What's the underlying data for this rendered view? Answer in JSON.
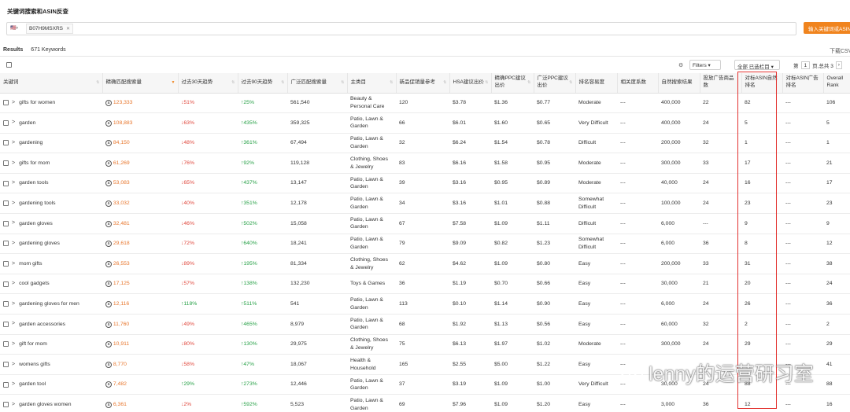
{
  "page": {
    "title": "关键词搜索和ASIN反查",
    "search_flag": "🇺🇸",
    "search_asin": "B07H9MSXRS",
    "search_remove": "✕",
    "search_button": "输入关键词或ASIN",
    "results_label": "Results",
    "results_count": "671 Keywords",
    "download": "下载CSV",
    "filters_label": "Filters ▾",
    "columns_label": "全部 已选栏目 ▾",
    "pager_prefix": "第",
    "pager_page": "1",
    "pager_suffix": "页,总共 3",
    "pager_next": "›",
    "watermark": "lenny的运营研习室"
  },
  "headers": [
    "关键词",
    "精确匹配搜索量",
    "过去30天趋势",
    "过去90天趋势",
    "广泛匹配搜索量",
    "主类目",
    "新品促销量参考",
    "HSA建议出价",
    "精确PPC建议出价",
    "广泛PPC建议出价",
    "排名容易度",
    "相关度系数",
    "自然搜索结果",
    "投放广告商品数",
    "对标ASIN自然排名",
    "对标ASIN广告排名",
    "Overall Rank"
  ],
  "rows": [
    {
      "kw": "gifts for women",
      "vol": "123,333",
      "t30": "↓51%",
      "t30d": "down",
      "t90": "↑25%",
      "t90d": "up",
      "broad": "561,540",
      "cat": "Beauty & Personal Care",
      "promo": "120",
      "hsa": "$3.78",
      "exact": "$1.36",
      "wide": "$0.77",
      "ease": "Moderate",
      "rel": "---",
      "org": "400,000",
      "ads": "22",
      "arank": "82",
      "adrank": "---",
      "overall": "106"
    },
    {
      "kw": "garden",
      "vol": "108,883",
      "t30": "↓63%",
      "t30d": "down",
      "t90": "↑435%",
      "t90d": "up",
      "broad": "359,325",
      "cat": "Patio, Lawn & Garden",
      "promo": "66",
      "hsa": "$6.01",
      "exact": "$1.60",
      "wide": "$0.65",
      "ease": "Very Difficult",
      "rel": "---",
      "org": "400,000",
      "ads": "24",
      "arank": "5",
      "adrank": "---",
      "overall": "5"
    },
    {
      "kw": "gardening",
      "vol": "84,150",
      "t30": "↓48%",
      "t30d": "down",
      "t90": "↑361%",
      "t90d": "up",
      "broad": "67,494",
      "cat": "Patio, Lawn & Garden",
      "promo": "32",
      "hsa": "$6.24",
      "exact": "$1.54",
      "wide": "$0.78",
      "ease": "Difficult",
      "rel": "---",
      "org": "200,000",
      "ads": "32",
      "arank": "1",
      "adrank": "---",
      "overall": "1"
    },
    {
      "kw": "gifts for mom",
      "vol": "61,269",
      "t30": "↓76%",
      "t30d": "down",
      "t90": "↑92%",
      "t90d": "up",
      "broad": "119,128",
      "cat": "Clothing, Shoes & Jewelry",
      "promo": "83",
      "hsa": "$6.16",
      "exact": "$1.58",
      "wide": "$0.95",
      "ease": "Moderate",
      "rel": "---",
      "org": "300,000",
      "ads": "33",
      "arank": "17",
      "adrank": "---",
      "overall": "21"
    },
    {
      "kw": "garden tools",
      "vol": "53,083",
      "t30": "↓65%",
      "t30d": "down",
      "t90": "↑437%",
      "t90d": "up",
      "broad": "13,147",
      "cat": "Patio, Lawn & Garden",
      "promo": "39",
      "hsa": "$3.16",
      "exact": "$0.95",
      "wide": "$0.89",
      "ease": "Moderate",
      "rel": "---",
      "org": "40,000",
      "ads": "24",
      "arank": "16",
      "adrank": "---",
      "overall": "17"
    },
    {
      "kw": "gardening tools",
      "vol": "33,032",
      "t30": "↓40%",
      "t30d": "down",
      "t90": "↑351%",
      "t90d": "up",
      "broad": "12,178",
      "cat": "Patio, Lawn & Garden",
      "promo": "34",
      "hsa": "$3.16",
      "exact": "$1.01",
      "wide": "$0.88",
      "ease": "Somewhat Difficult",
      "rel": "---",
      "org": "100,000",
      "ads": "24",
      "arank": "23",
      "adrank": "---",
      "overall": "23"
    },
    {
      "kw": "garden gloves",
      "vol": "32,481",
      "t30": "↓46%",
      "t30d": "down",
      "t90": "↑502%",
      "t90d": "up",
      "broad": "15,058",
      "cat": "Patio, Lawn & Garden",
      "promo": "67",
      "hsa": "$7.58",
      "exact": "$1.09",
      "wide": "$1.11",
      "ease": "Difficult",
      "rel": "---",
      "org": "6,000",
      "ads": "---",
      "arank": "9",
      "adrank": "---",
      "overall": "9"
    },
    {
      "kw": "gardening gloves",
      "vol": "29,618",
      "t30": "↓72%",
      "t30d": "down",
      "t90": "↑640%",
      "t90d": "up",
      "broad": "18,241",
      "cat": "Patio, Lawn & Garden",
      "promo": "79",
      "hsa": "$9.09",
      "exact": "$0.82",
      "wide": "$1.23",
      "ease": "Somewhat Difficult",
      "rel": "---",
      "org": "6,000",
      "ads": "36",
      "arank": "8",
      "adrank": "---",
      "overall": "12"
    },
    {
      "kw": "mom gifts",
      "vol": "26,553",
      "t30": "↓89%",
      "t30d": "down",
      "t90": "↑195%",
      "t90d": "up",
      "broad": "81,334",
      "cat": "Clothing, Shoes & Jewelry",
      "promo": "62",
      "hsa": "$4.62",
      "exact": "$1.09",
      "wide": "$0.80",
      "ease": "Easy",
      "rel": "---",
      "org": "200,000",
      "ads": "33",
      "arank": "31",
      "adrank": "---",
      "overall": "38"
    },
    {
      "kw": "cool gadgets",
      "vol": "17,125",
      "t30": "↓57%",
      "t30d": "down",
      "t90": "↑138%",
      "t90d": "up",
      "broad": "132,230",
      "cat": "Toys & Games",
      "promo": "36",
      "hsa": "$1.19",
      "exact": "$0.70",
      "wide": "$0.66",
      "ease": "Easy",
      "rel": "---",
      "org": "30,000",
      "ads": "21",
      "arank": "20",
      "adrank": "---",
      "overall": "24"
    },
    {
      "kw": "gardening gloves for men",
      "vol": "12,116",
      "t30": "↑118%",
      "t30d": "up",
      "t90": "↑511%",
      "t90d": "up",
      "broad": "541",
      "cat": "Patio, Lawn & Garden",
      "promo": "113",
      "hsa": "$0.10",
      "exact": "$1.14",
      "wide": "$0.90",
      "ease": "Easy",
      "rel": "---",
      "org": "6,000",
      "ads": "24",
      "arank": "26",
      "adrank": "---",
      "overall": "36"
    },
    {
      "kw": "garden accessories",
      "vol": "11,760",
      "t30": "↓49%",
      "t30d": "down",
      "t90": "↑465%",
      "t90d": "up",
      "broad": "8,979",
      "cat": "Patio, Lawn & Garden",
      "promo": "68",
      "hsa": "$1.92",
      "exact": "$1.13",
      "wide": "$0.56",
      "ease": "Easy",
      "rel": "---",
      "org": "60,000",
      "ads": "32",
      "arank": "2",
      "adrank": "---",
      "overall": "2"
    },
    {
      "kw": "gift for mom",
      "vol": "10,911",
      "t30": "↓80%",
      "t30d": "down",
      "t90": "↑130%",
      "t90d": "up",
      "broad": "29,975",
      "cat": "Clothing, Shoes & Jewelry",
      "promo": "75",
      "hsa": "$6.13",
      "exact": "$1.97",
      "wide": "$1.02",
      "ease": "Moderate",
      "rel": "---",
      "org": "300,000",
      "ads": "24",
      "arank": "29",
      "adrank": "---",
      "overall": "29"
    },
    {
      "kw": "womens gifts",
      "vol": "8,770",
      "t30": "↓58%",
      "t30d": "down",
      "t90": "↑47%",
      "t90d": "up",
      "broad": "18,067",
      "cat": "Health & Household",
      "promo": "165",
      "hsa": "$2.55",
      "exact": "$5.00",
      "wide": "$1.22",
      "ease": "Easy",
      "rel": "---",
      "org": "",
      "ads": "",
      "arank": "",
      "adrank": "---",
      "overall": "41"
    },
    {
      "kw": "garden tool",
      "vol": "7,482",
      "t30": "↑29%",
      "t30d": "up",
      "t90": "↑273%",
      "t90d": "up",
      "broad": "12,446",
      "cat": "Patio, Lawn & Garden",
      "promo": "37",
      "hsa": "$3.19",
      "exact": "$1.09",
      "wide": "$1.00",
      "ease": "Very Difficult",
      "rel": "---",
      "org": "30,000",
      "ads": "24",
      "arank": "88",
      "adrank": "---",
      "overall": "88"
    },
    {
      "kw": "garden gloves women",
      "vol": "6,361",
      "t30": "↓2%",
      "t30d": "down",
      "t90": "↑592%",
      "t90d": "up",
      "broad": "5,523",
      "cat": "Patio, Lawn & Garden",
      "promo": "69",
      "hsa": "$7.96",
      "exact": "$1.09",
      "wide": "$1.20",
      "ease": "Easy",
      "rel": "---",
      "org": "3,000",
      "ads": "36",
      "arank": "12",
      "adrank": "---",
      "overall": "16"
    }
  ]
}
